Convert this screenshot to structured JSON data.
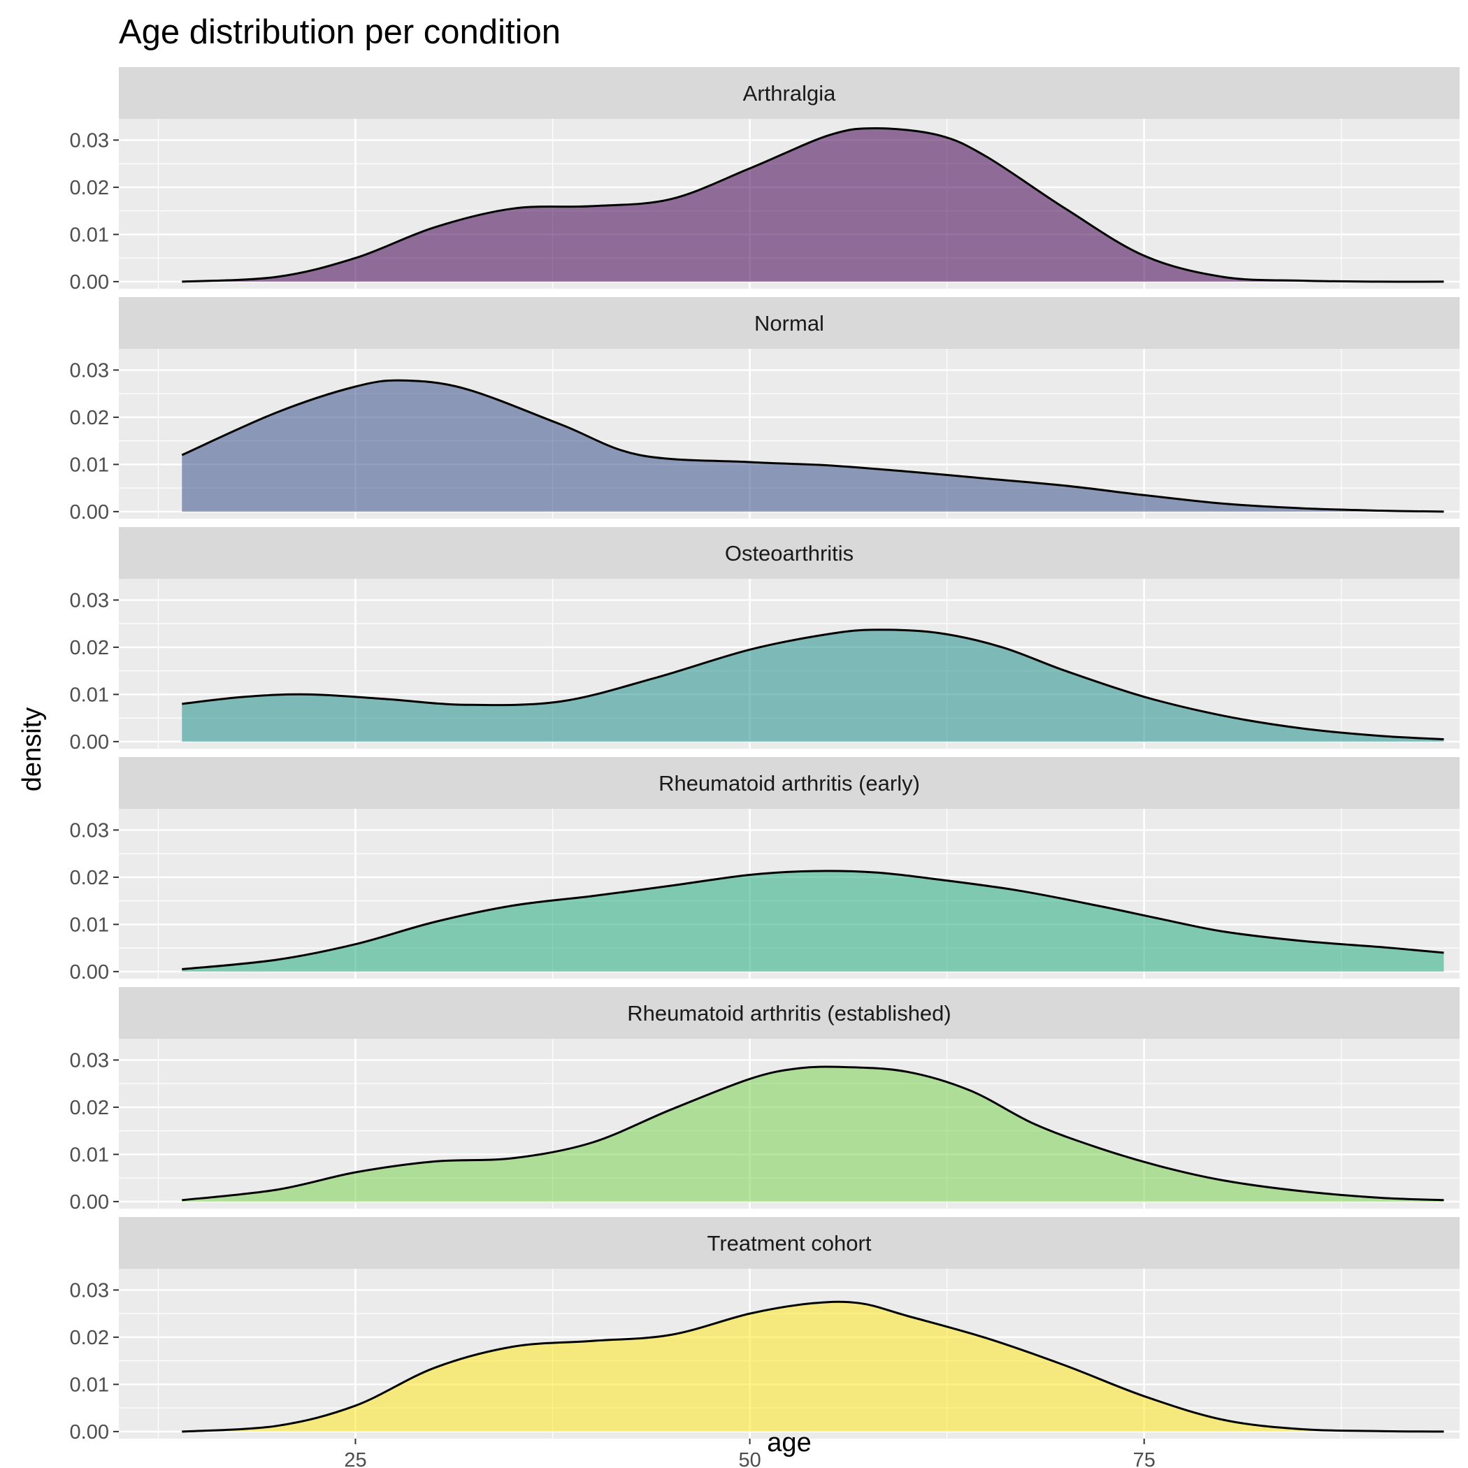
{
  "chart_data": {
    "type": "area",
    "subtype": "faceted-density",
    "title": "Age distribution per condition",
    "xlabel": "age",
    "ylabel": "density",
    "xlim": [
      10,
      95
    ],
    "ylim": [
      -0.0015,
      0.0345
    ],
    "x_ticks": [
      25,
      50,
      75
    ],
    "x_tick_labels": [
      "25",
      "50",
      "75"
    ],
    "y_ticks": [
      0,
      0.01,
      0.02,
      0.03
    ],
    "y_tick_labels": [
      "0.00",
      "0.01",
      "0.02",
      "0.03"
    ],
    "grid": true,
    "legend": "none",
    "facet_layout": "stacked-rows",
    "outline_color": "#000000",
    "panel_background": "#ebebeb",
    "strip_background": "#d9d9d9",
    "fill_opacity": 0.55,
    "series": [
      {
        "name": "Arthralgia",
        "color": "#440154",
        "x": [
          14,
          20,
          25,
          30,
          35,
          40,
          45,
          50,
          55,
          58,
          62,
          65,
          70,
          75,
          80,
          85,
          90,
          94
        ],
        "y": [
          0.0,
          0.001,
          0.005,
          0.0115,
          0.0155,
          0.016,
          0.0175,
          0.024,
          0.031,
          0.0325,
          0.031,
          0.0265,
          0.0155,
          0.0055,
          0.001,
          0.0002,
          0.0,
          0.0
        ]
      },
      {
        "name": "Normal",
        "color": "#3b528b",
        "x": [
          14,
          20,
          25,
          28,
          32,
          38,
          43,
          50,
          55,
          60,
          65,
          70,
          75,
          80,
          85,
          90,
          94
        ],
        "y": [
          0.012,
          0.021,
          0.0265,
          0.0278,
          0.026,
          0.0185,
          0.012,
          0.0105,
          0.0098,
          0.0085,
          0.007,
          0.0055,
          0.0035,
          0.0017,
          0.0007,
          0.0002,
          0.0
        ]
      },
      {
        "name": "Osteoarthritis",
        "color": "#21908c",
        "x": [
          14,
          18,
          22,
          27,
          32,
          38,
          44,
          50,
          55,
          58,
          62,
          66,
          70,
          75,
          80,
          85,
          90,
          94
        ],
        "y": [
          0.008,
          0.0095,
          0.01,
          0.009,
          0.0078,
          0.0085,
          0.0135,
          0.0195,
          0.0228,
          0.0237,
          0.023,
          0.02,
          0.015,
          0.0095,
          0.0055,
          0.0028,
          0.0012,
          0.0005
        ]
      },
      {
        "name": "Rheumatoid arthritis (early)",
        "color": "#27ad81",
        "x": [
          14,
          20,
          25,
          30,
          35,
          40,
          45,
          50,
          54,
          58,
          62,
          67,
          72,
          76,
          80,
          85,
          90,
          94
        ],
        "y": [
          0.0005,
          0.0025,
          0.0058,
          0.0105,
          0.014,
          0.016,
          0.0182,
          0.0205,
          0.0213,
          0.021,
          0.0195,
          0.0172,
          0.014,
          0.0112,
          0.0085,
          0.0065,
          0.0052,
          0.004
        ]
      },
      {
        "name": "Rheumatoid arthritis (established)",
        "color": "#7ad151",
        "x": [
          14,
          20,
          25,
          30,
          35,
          40,
          45,
          50,
          53,
          56,
          60,
          64,
          68,
          72,
          76,
          80,
          85,
          90,
          94
        ],
        "y": [
          0.0003,
          0.0025,
          0.0062,
          0.0085,
          0.0092,
          0.0125,
          0.0195,
          0.026,
          0.0282,
          0.0285,
          0.0275,
          0.0235,
          0.0165,
          0.0115,
          0.0075,
          0.0045,
          0.0022,
          0.0008,
          0.0003
        ]
      },
      {
        "name": "Treatment cohort",
        "color": "#fde725",
        "x": [
          14,
          20,
          25,
          30,
          35,
          40,
          45,
          50,
          54,
          57,
          60,
          65,
          70,
          75,
          80,
          85,
          90,
          94
        ],
        "y": [
          0.0,
          0.0012,
          0.0055,
          0.0135,
          0.018,
          0.0192,
          0.0205,
          0.025,
          0.0272,
          0.0272,
          0.0245,
          0.0198,
          0.014,
          0.0075,
          0.0025,
          0.0005,
          0.0001,
          0.0
        ]
      }
    ]
  }
}
